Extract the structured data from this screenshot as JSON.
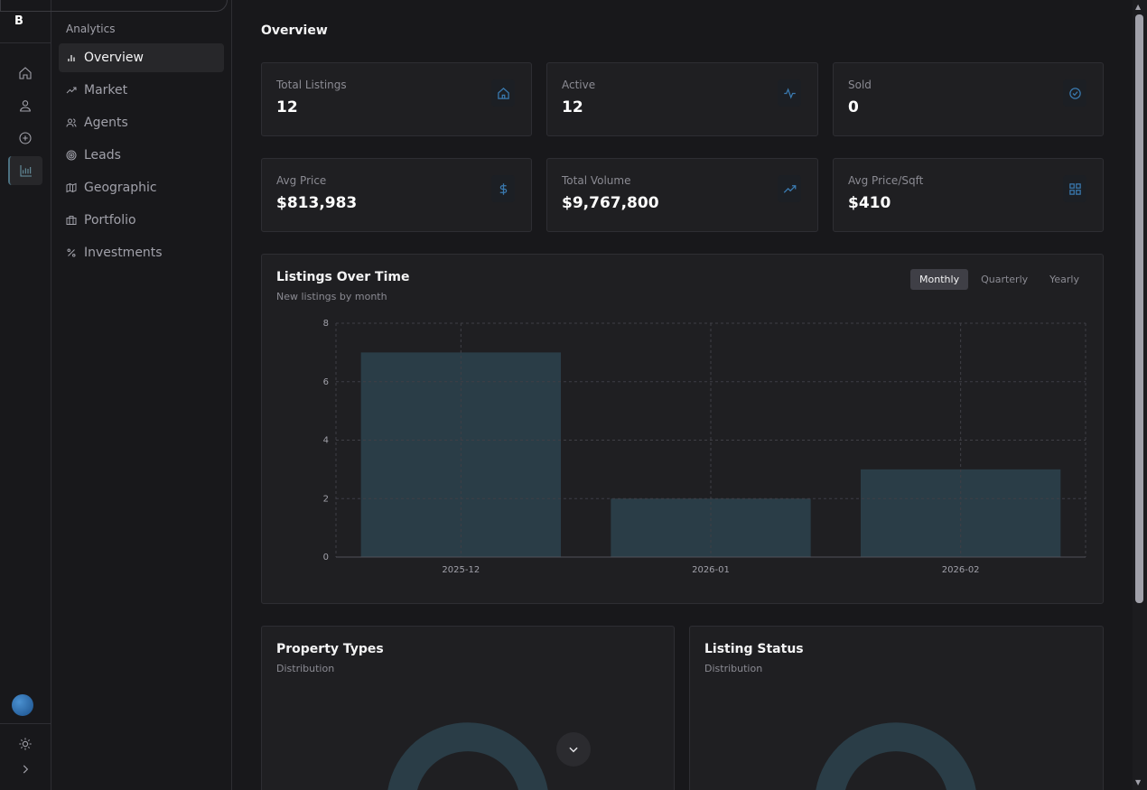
{
  "app": {
    "logo": "B"
  },
  "rail": {
    "items": [
      {
        "icon": "home-icon"
      },
      {
        "icon": "user-icon"
      },
      {
        "icon": "plus-circle-icon"
      },
      {
        "icon": "bar-chart-icon",
        "active": true
      }
    ]
  },
  "subnav": {
    "header": "Analytics",
    "items": [
      {
        "label": "Overview",
        "icon": "bar-chart-icon",
        "active": true
      },
      {
        "label": "Market",
        "icon": "trending-up-icon"
      },
      {
        "label": "Agents",
        "icon": "users-icon"
      },
      {
        "label": "Leads",
        "icon": "target-icon"
      },
      {
        "label": "Geographic",
        "icon": "map-icon"
      },
      {
        "label": "Portfolio",
        "icon": "briefcase-icon"
      },
      {
        "label": "Investments",
        "icon": "percent-icon"
      }
    ]
  },
  "page": {
    "title": "Overview"
  },
  "stats": [
    {
      "label": "Total Listings",
      "value": "12",
      "icon": "home-icon"
    },
    {
      "label": "Active",
      "value": "12",
      "icon": "activity-icon"
    },
    {
      "label": "Sold",
      "value": "0",
      "icon": "check-circle-icon"
    },
    {
      "label": "Avg Price",
      "value": "$813,983",
      "icon": "dollar-icon"
    },
    {
      "label": "Total Volume",
      "value": "$9,767,800",
      "icon": "trending-up-icon"
    },
    {
      "label": "Avg Price/Sqft",
      "value": "$410",
      "icon": "grid-icon"
    }
  ],
  "listings_chart": {
    "title": "Listings Over Time",
    "subtitle": "New listings by month",
    "tabs": [
      "Monthly",
      "Quarterly",
      "Yearly"
    ],
    "active_tab": "Monthly"
  },
  "chart_data": {
    "type": "bar",
    "categories": [
      "2025-12",
      "2026-01",
      "2026-02"
    ],
    "values": [
      7,
      2,
      3
    ],
    "ylim": [
      0,
      8
    ],
    "yticks": [
      "0",
      "2",
      "4",
      "6",
      "8"
    ],
    "grid": true,
    "bar_color": "#2a3d47"
  },
  "property_types": {
    "title": "Property Types",
    "subtitle": "Distribution"
  },
  "listing_status": {
    "title": "Listing Status",
    "subtitle": "Distribution"
  },
  "colors": {
    "accent": "#3a7ab0",
    "bar": "#2a3d47"
  }
}
